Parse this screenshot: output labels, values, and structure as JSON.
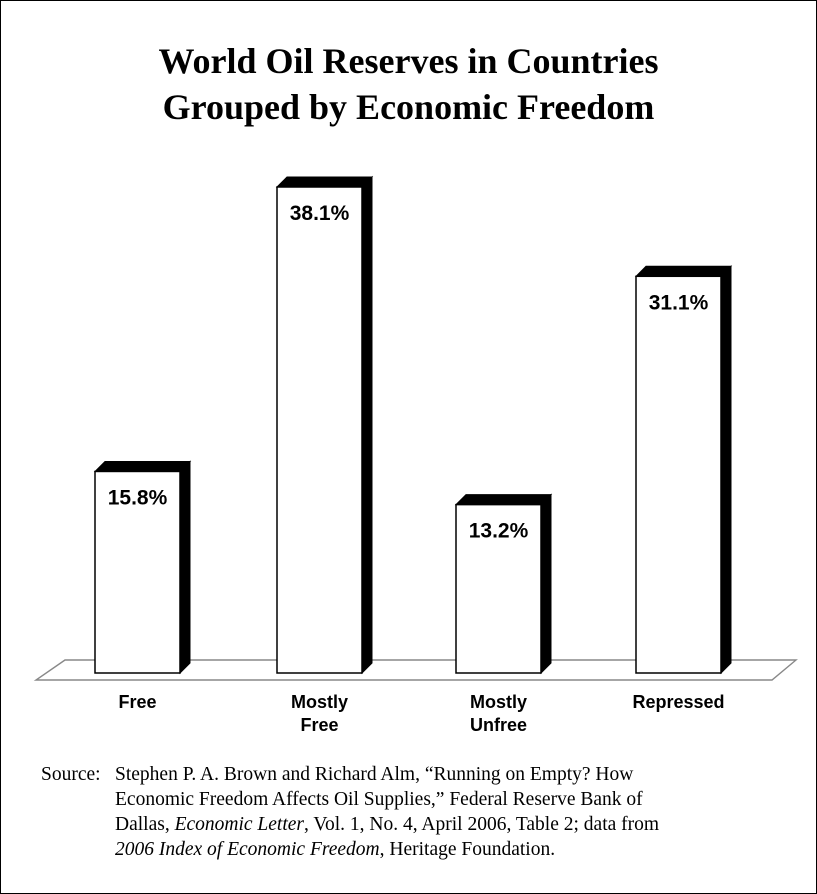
{
  "chart_data": {
    "type": "bar",
    "title": "World Oil Reserves in Countries Grouped by Economic Freedom",
    "title_lines": [
      "World Oil Reserves in Countries",
      "Grouped by Economic Freedom"
    ],
    "categories": [
      "Free",
      "Mostly Free",
      "Mostly Unfree",
      "Repressed"
    ],
    "category_lines": [
      [
        "Free"
      ],
      [
        "Mostly",
        "Free"
      ],
      [
        "Mostly",
        "Unfree"
      ],
      [
        "Repressed"
      ]
    ],
    "values": [
      15.8,
      38.1,
      13.2,
      31.1
    ],
    "value_labels": [
      "15.8%",
      "38.1%",
      "13.2%",
      "31.1%"
    ],
    "xlabel": "",
    "ylabel": "",
    "ylim": [
      0,
      40
    ],
    "grid": false,
    "colors": {
      "bar_face": "#ffffff",
      "bar_side": "#000000",
      "outline": "#000000",
      "floor": "#888888"
    }
  },
  "source": {
    "lead": "Source:",
    "parts": [
      {
        "text": "Stephen P. A. Brown and Richard Alm, “Running on Empty? How",
        "italic": false
      },
      {
        "text": "Economic Freedom Affects Oil Supplies,” Federal Reserve Bank of",
        "italic": false
      },
      {
        "text": "Dallas, ",
        "italic": false
      },
      {
        "text": "Economic Letter",
        "italic": true
      },
      {
        "text": ", Vol. 1, No. 4, April 2006, Table 2; data from",
        "italic": false
      },
      {
        "text": "2006 Index of Economic Freedom",
        "italic": true
      },
      {
        "text": ", Heritage  Foundation.",
        "italic": false
      }
    ]
  }
}
